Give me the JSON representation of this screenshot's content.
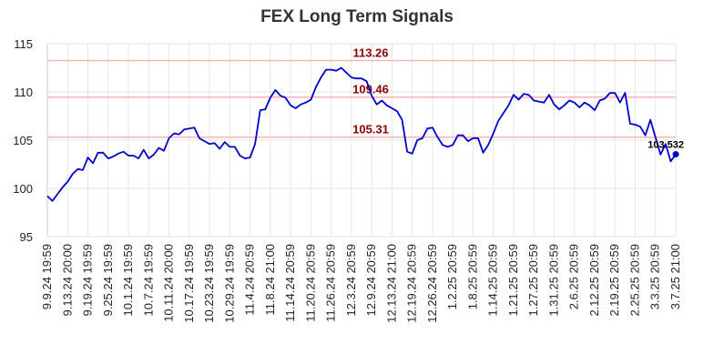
{
  "chart_data": {
    "type": "line",
    "title": "FEX Long Term Signals",
    "xlabel": "",
    "ylabel": "",
    "ylim": [
      95,
      115
    ],
    "y_ticks": [
      95,
      100,
      105,
      110,
      115
    ],
    "grid": true,
    "colors": {
      "line": "#0000cc",
      "signal": "#ffb3b3",
      "signal_text": "#8b0000",
      "grid": "#e6e6e6"
    },
    "signal_levels": [
      {
        "value": 113.26,
        "label": "113.26"
      },
      {
        "value": 109.46,
        "label": "109.46"
      },
      {
        "value": 105.31,
        "label": "105.31"
      }
    ],
    "last_value_label": "103.532",
    "x_tick_labels": [
      "9.9.24 19:59",
      "9.13.24 20:00",
      "9.19.24 19:59",
      "9.25.24 19:59",
      "10.1.24 19:59",
      "10.7.24 19:59",
      "10.11.24 20:00",
      "10.17.24 19:59",
      "10.23.24 19:59",
      "10.29.24 19:59",
      "11.4.24 20:59",
      "11.8.24 21:00",
      "11.14.24 20:59",
      "11.20.24 20:59",
      "11.26.24 20:59",
      "12.3.24 20:59",
      "12.9.24 20:59",
      "12.13.24 21:00",
      "12.19.24 20:59",
      "12.26.24 20:59",
      "1.2.25 20:59",
      "1.8.25 20:59",
      "1.14.25 20:59",
      "1.21.25 20:59",
      "1.27.25 20:59",
      "1.31.25 20:59",
      "2.6.25 20:59",
      "2.12.25 20:59",
      "2.19.25 20:59",
      "2.25.25 20:59",
      "3.3.25 20:59",
      "3.7.25 21:00"
    ],
    "series": [
      {
        "values": [
          99.2,
          98.7,
          99.4,
          100.1,
          100.7,
          101.5,
          102.0,
          101.9,
          103.2,
          102.6,
          103.7,
          103.7,
          103.1,
          103.3,
          103.6,
          103.8,
          103.4,
          103.4,
          103.1,
          104.0,
          103.1,
          103.5,
          104.2,
          103.9,
          105.2,
          105.7,
          105.6,
          106.1,
          106.2,
          106.3,
          105.2,
          104.9,
          104.6,
          104.7,
          104.1,
          104.8,
          104.3,
          104.3,
          103.4,
          103.1,
          103.2,
          104.6,
          108.1,
          108.2,
          109.4,
          110.2,
          109.6,
          109.4,
          108.6,
          108.3,
          108.7,
          108.9,
          109.2,
          110.5,
          111.5,
          112.3,
          112.3,
          112.2,
          112.5,
          112.0,
          111.5,
          111.4,
          111.4,
          111.1,
          109.6,
          108.7,
          109.1,
          108.6,
          108.3,
          108.0,
          107.1,
          103.8,
          103.6,
          105.0,
          105.2,
          106.2,
          106.3,
          105.3,
          104.5,
          104.3,
          104.5,
          105.5,
          105.5,
          104.9,
          105.2,
          105.2,
          103.7,
          104.5,
          105.7,
          107.0,
          107.8,
          108.6,
          109.7,
          109.2,
          109.8,
          109.7,
          109.1,
          109.0,
          108.9,
          109.7,
          108.7,
          108.2,
          108.6,
          109.1,
          108.9,
          108.4,
          108.9,
          108.6,
          108.1,
          109.1,
          109.3,
          109.9,
          109.9,
          108.9,
          109.9,
          106.7,
          106.6,
          106.4,
          105.5,
          107.1,
          105.3,
          103.5,
          104.6,
          102.8,
          103.532
        ]
      }
    ]
  }
}
